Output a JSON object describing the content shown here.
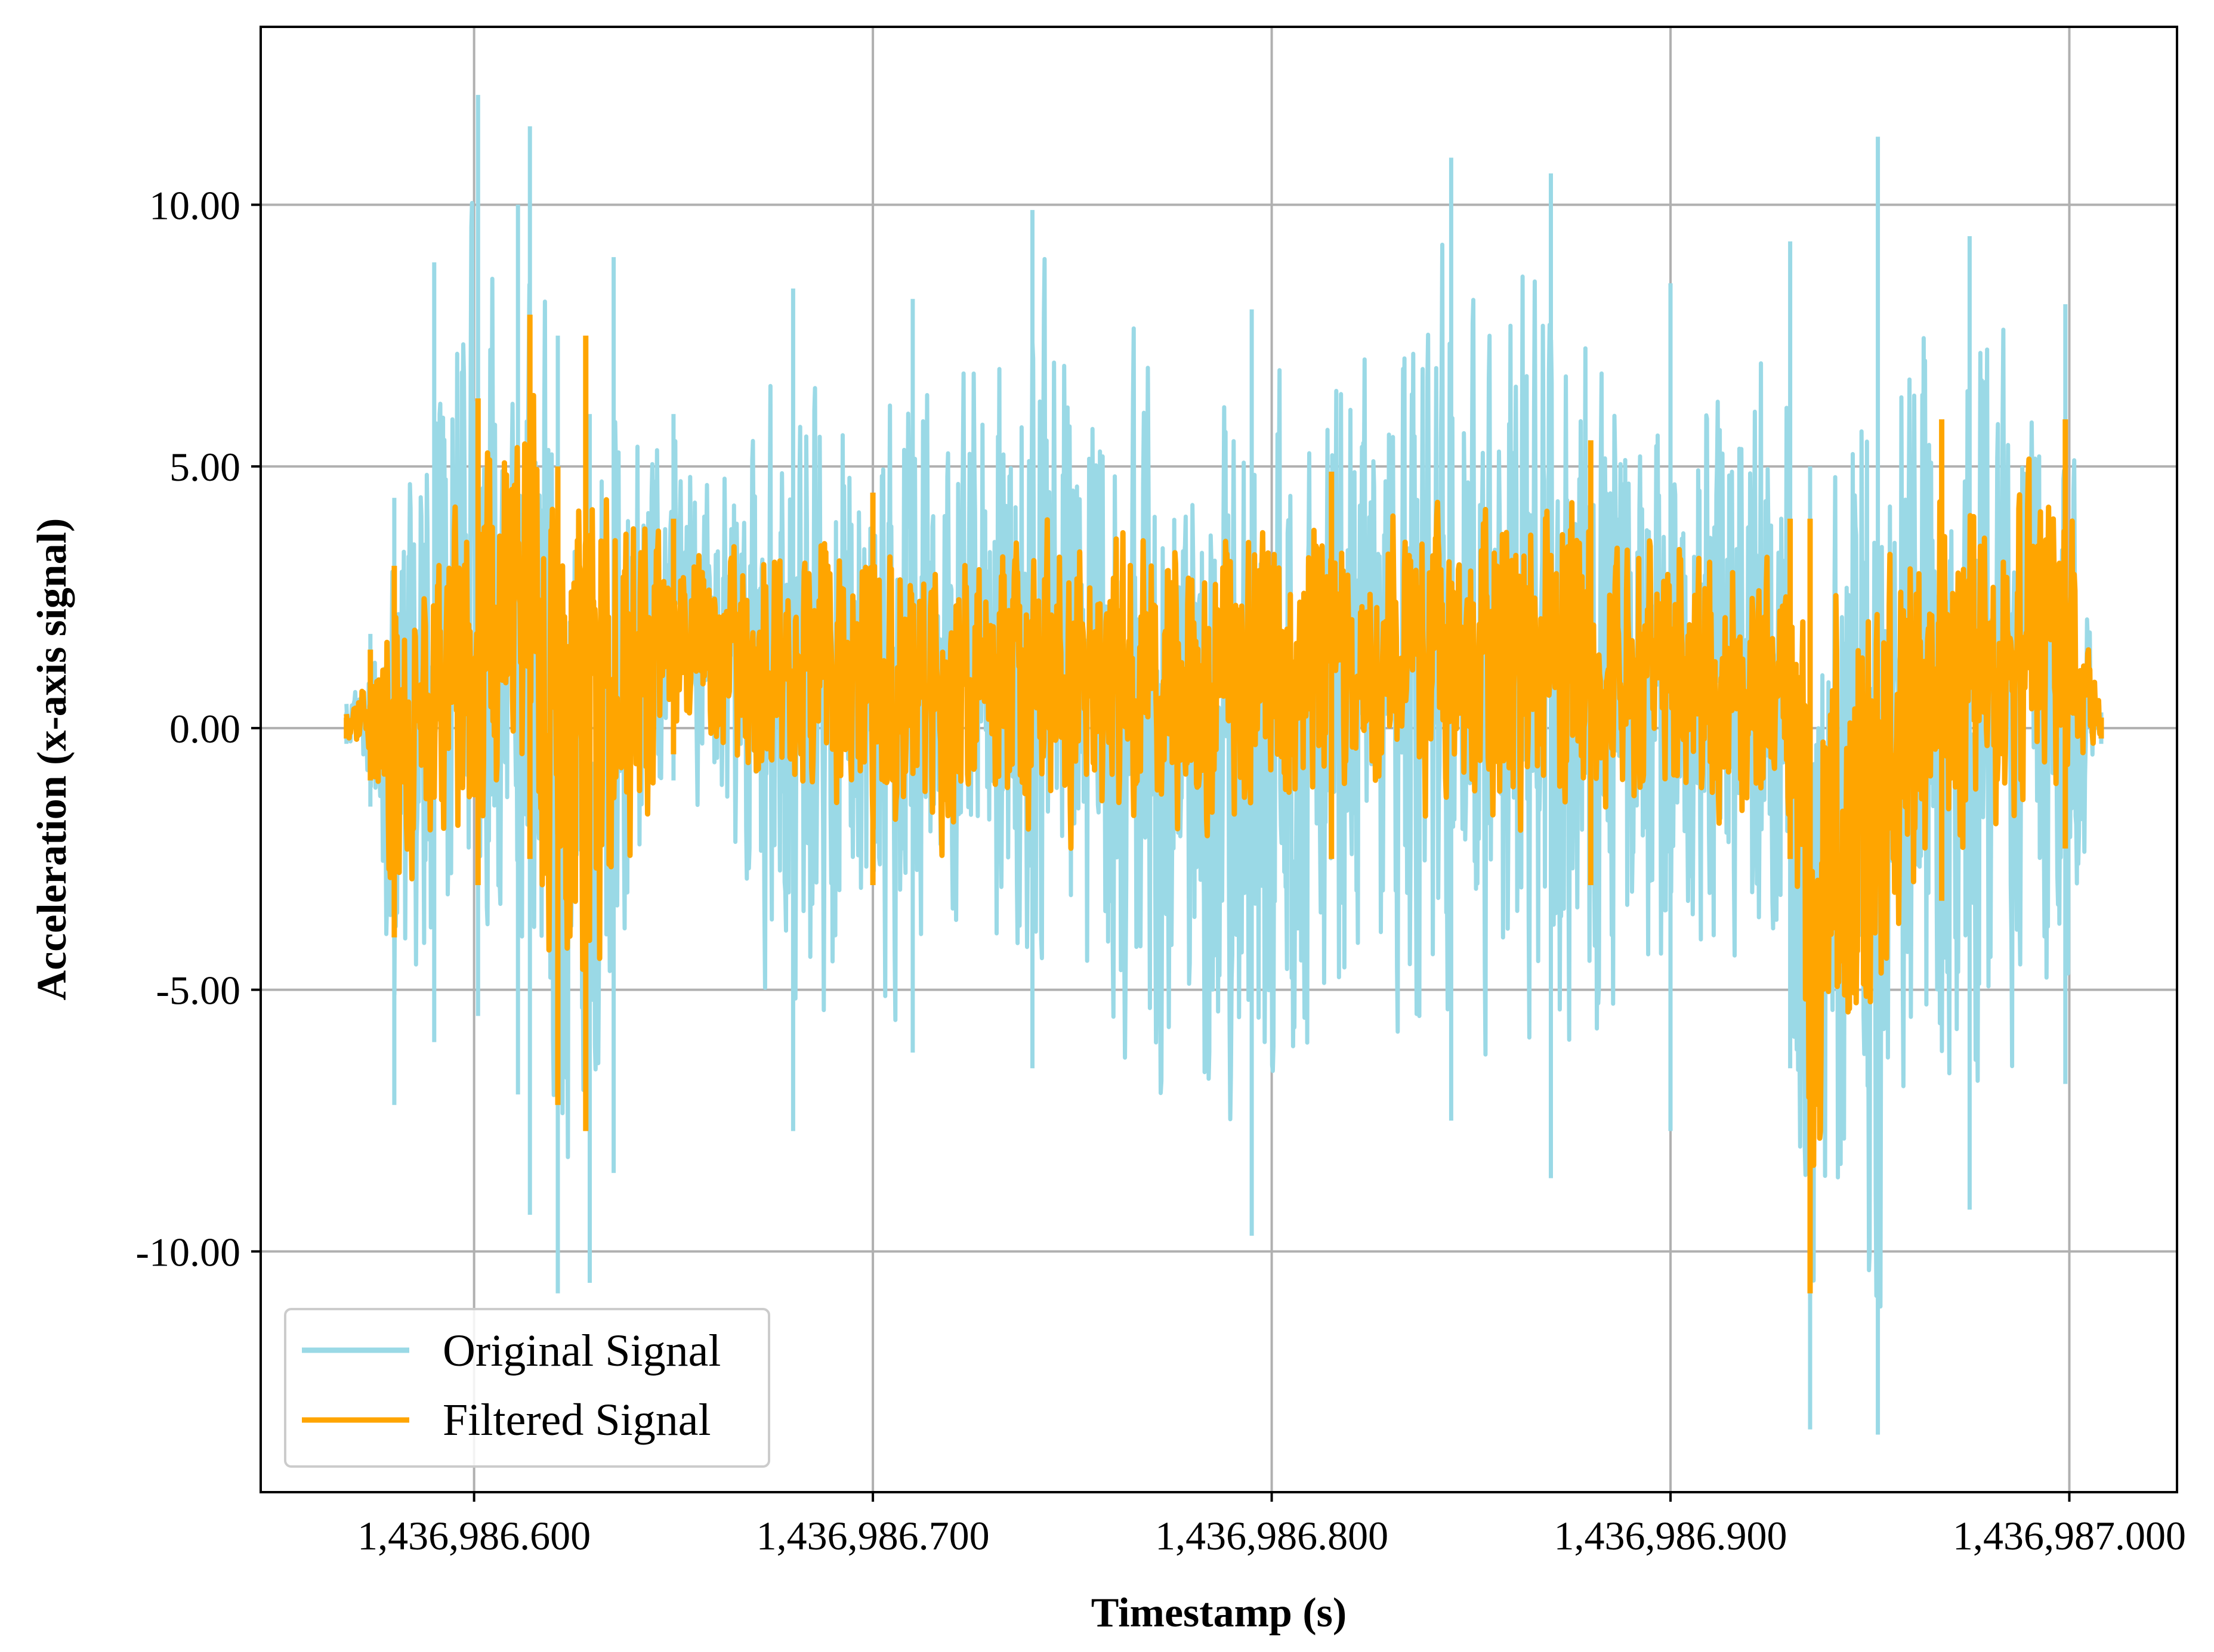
{
  "chart_data": {
    "type": "line",
    "title": "",
    "xlabel": "Timestamp (s)",
    "ylabel": "Acceleration (x-axis signal)",
    "xlim": [
      1436986.5465,
      1436987.027
    ],
    "ylim": [
      -14.6,
      13.4
    ],
    "grid": true,
    "legend_position": "lower-left",
    "x_ticks": [
      {
        "value": 1436986.6,
        "label": "1,436,986.600"
      },
      {
        "value": 1436986.7,
        "label": "1,436,986.700"
      },
      {
        "value": 1436986.8,
        "label": "1,436,986.800"
      },
      {
        "value": 1436986.9,
        "label": "1,436,986.900"
      },
      {
        "value": 1436987.0,
        "label": "1,436,987.000"
      }
    ],
    "y_ticks": [
      {
        "value": 10,
        "label": "10.00"
      },
      {
        "value": 5,
        "label": "5.00"
      },
      {
        "value": 0,
        "label": "0.00"
      },
      {
        "value": -5,
        "label": "-5.00"
      },
      {
        "value": -10,
        "label": "-10.00"
      }
    ],
    "series": [
      {
        "name": "Original Signal",
        "color": "#9ad9e6",
        "x_start": 1436986.568,
        "x_end": 1436987.008,
        "envelope": [
          {
            "x": 1436986.568,
            "min": -0.3,
            "max": 0.3
          },
          {
            "x": 1436986.574,
            "min": -1.5,
            "max": 1.8
          },
          {
            "x": 1436986.58,
            "min": -7.2,
            "max": 4.4
          },
          {
            "x": 1436986.59,
            "min": -6.0,
            "max": 8.9
          },
          {
            "x": 1436986.601,
            "min": -5.5,
            "max": 12.1
          },
          {
            "x": 1436986.611,
            "min": -7.0,
            "max": 10.0
          },
          {
            "x": 1436986.614,
            "min": -9.3,
            "max": 11.5
          },
          {
            "x": 1436986.621,
            "min": -10.8,
            "max": 7.5
          },
          {
            "x": 1436986.629,
            "min": -10.6,
            "max": 6.0
          },
          {
            "x": 1436986.635,
            "min": -8.5,
            "max": 9.0
          },
          {
            "x": 1436986.65,
            "min": -1.0,
            "max": 6.0
          },
          {
            "x": 1436986.68,
            "min": -7.7,
            "max": 8.4
          },
          {
            "x": 1436986.71,
            "min": -6.2,
            "max": 8.2
          },
          {
            "x": 1436986.74,
            "min": -6.5,
            "max": 9.9
          },
          {
            "x": 1436986.795,
            "min": -9.7,
            "max": 8.0
          },
          {
            "x": 1436986.845,
            "min": -7.5,
            "max": 10.9
          },
          {
            "x": 1436986.87,
            "min": -8.6,
            "max": 10.6
          },
          {
            "x": 1436986.9,
            "min": -7.7,
            "max": 8.5
          },
          {
            "x": 1436986.93,
            "min": -6.5,
            "max": 9.3
          },
          {
            "x": 1436986.935,
            "min": -13.4,
            "max": 5.0
          },
          {
            "x": 1436986.952,
            "min": -13.5,
            "max": 11.3
          },
          {
            "x": 1436986.975,
            "min": -9.2,
            "max": 9.4
          },
          {
            "x": 1436986.999,
            "min": -6.8,
            "max": 8.1
          },
          {
            "x": 1436987.008,
            "min": -0.3,
            "max": 0.3
          }
        ]
      },
      {
        "name": "Filtered Signal",
        "color": "#ffa500",
        "x_start": 1436986.568,
        "x_end": 1436987.008,
        "envelope": [
          {
            "x": 1436986.568,
            "min": -0.2,
            "max": 0.2
          },
          {
            "x": 1436986.574,
            "min": -1.0,
            "max": 1.5
          },
          {
            "x": 1436986.58,
            "min": -4.0,
            "max": 3.1
          },
          {
            "x": 1436986.601,
            "min": -3.0,
            "max": 6.3
          },
          {
            "x": 1436986.614,
            "min": -2.5,
            "max": 7.9
          },
          {
            "x": 1436986.621,
            "min": -7.2,
            "max": 5.0
          },
          {
            "x": 1436986.628,
            "min": -7.7,
            "max": 7.5
          },
          {
            "x": 1436986.65,
            "min": -0.5,
            "max": 4.0
          },
          {
            "x": 1436986.7,
            "min": -3.0,
            "max": 4.5
          },
          {
            "x": 1436986.815,
            "min": -2.5,
            "max": 4.9
          },
          {
            "x": 1436986.88,
            "min": -3.0,
            "max": 5.5
          },
          {
            "x": 1436986.93,
            "min": -2.5,
            "max": 4.0
          },
          {
            "x": 1436986.935,
            "min": -10.8,
            "max": 4.0
          },
          {
            "x": 1436986.968,
            "min": -3.3,
            "max": 5.9
          },
          {
            "x": 1436986.999,
            "min": -2.3,
            "max": 5.9
          },
          {
            "x": 1436987.008,
            "min": -0.2,
            "max": 0.2
          }
        ]
      }
    ]
  }
}
